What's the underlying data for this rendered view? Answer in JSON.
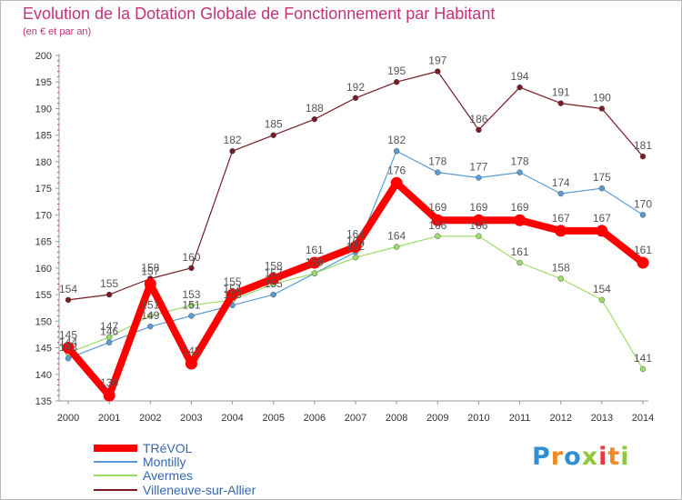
{
  "header": {
    "title": "Evolution de la Dotation Globale de Fonctionnement par Habitant",
    "subtitle": "(en € et par an)"
  },
  "brand": {
    "letters": [
      "P",
      "r",
      "o",
      "x",
      "i",
      "t",
      "i"
    ],
    "letter_colors": [
      "#2f8fd0",
      "#f08a24",
      "#2f8fd0",
      "#8fc93a",
      "#e63946",
      "#f08a24",
      "#8fc93a"
    ]
  },
  "chart_data": {
    "type": "line",
    "title": "Evolution de la Dotation Globale de Fonctionnement par Habitant",
    "subtitle": "(en € et par an)",
    "xlabel": "",
    "ylabel": "",
    "x": [
      "2000",
      "2001",
      "2002",
      "2003",
      "2004",
      "2005",
      "2006",
      "2007",
      "2008",
      "2009",
      "2010",
      "2011",
      "2012",
      "2013",
      "2014"
    ],
    "ylim": [
      135,
      200
    ],
    "yticks": [
      135,
      140,
      145,
      150,
      155,
      160,
      165,
      170,
      175,
      180,
      185,
      190,
      195,
      200
    ],
    "grid": false,
    "legend_position": "bottom-left",
    "series": [
      {
        "name": "Villeneuve-sur-Allier",
        "color": "#7a1a24",
        "values": [
          154,
          155,
          158,
          160,
          182,
          185,
          188,
          192,
          195,
          197,
          186,
          194,
          191,
          190,
          181
        ]
      },
      {
        "name": "Montilly",
        "color": "#5b9bd5",
        "values": [
          143,
          146,
          149,
          151,
          153,
          155,
          159,
          163,
          182,
          178,
          177,
          178,
          174,
          175,
          170
        ]
      },
      {
        "name": "Avermes",
        "color": "#99dd66",
        "values": [
          144,
          147,
          151,
          153,
          154,
          157,
          159,
          162,
          164,
          166,
          166,
          161,
          158,
          154,
          141
        ]
      },
      {
        "name": "TRéVOL",
        "color": "#ff0000",
        "values": [
          145,
          136,
          157,
          142,
          155,
          158,
          161,
          164,
          176,
          169,
          169,
          169,
          167,
          167,
          161
        ]
      }
    ],
    "legend": [
      "TRéVOL",
      "Montilly",
      "Avermes",
      "Villeneuve-sur-Allier"
    ]
  }
}
